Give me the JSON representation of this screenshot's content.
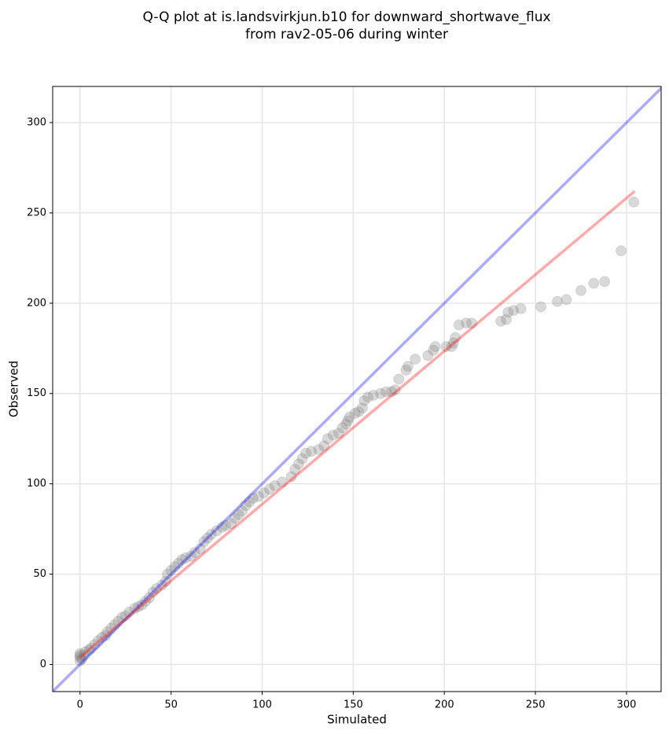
{
  "chart_data": {
    "type": "scatter",
    "title": [
      "Q-Q plot at is.landsvirkjun.b10 for downward_shortwave_flux",
      "from rav2-05-06 during winter"
    ],
    "xlabel": "Simulated",
    "ylabel": "Observed",
    "xlim": [
      -15,
      319
    ],
    "ylim": [
      -15,
      320
    ],
    "xticks": [
      0,
      50,
      100,
      150,
      200,
      250,
      300
    ],
    "yticks": [
      0,
      50,
      100,
      150,
      200,
      250,
      300
    ],
    "grid": true,
    "color": "#808080",
    "x": [
      0,
      0,
      0,
      0,
      1,
      2,
      3,
      5,
      6,
      8,
      10,
      12,
      14,
      15,
      17,
      19,
      21,
      23,
      25,
      27,
      30,
      32,
      34,
      36,
      38,
      40,
      42,
      45,
      47,
      48,
      50,
      52,
      54,
      56,
      58,
      61,
      63,
      66,
      68,
      70,
      72,
      75,
      78,
      80,
      83,
      85,
      87,
      89,
      91,
      93,
      95,
      98,
      101,
      104,
      107,
      111,
      116,
      118,
      120,
      122,
      124,
      127,
      131,
      134,
      136,
      139,
      142,
      144,
      146,
      147,
      148,
      151,
      153,
      155,
      156,
      158,
      161,
      165,
      168,
      171,
      173,
      175,
      179,
      180,
      184,
      191,
      194,
      195,
      201,
      204,
      205,
      206,
      208,
      212,
      215,
      231,
      234,
      235,
      238,
      242,
      253,
      262,
      267,
      275,
      282,
      288,
      297,
      304
    ],
    "values": [
      2,
      4,
      5,
      6,
      3,
      5,
      7,
      8,
      9,
      11,
      13,
      15,
      16,
      18,
      20,
      22,
      24,
      26,
      27,
      29,
      31,
      32,
      33,
      35,
      37,
      40,
      42,
      44,
      46,
      50,
      52,
      54,
      56,
      58,
      59,
      60,
      62,
      64,
      68,
      70,
      72,
      74,
      76,
      77,
      78,
      81,
      83,
      85,
      88,
      90,
      92,
      93,
      95,
      97,
      99,
      101,
      104,
      108,
      111,
      114,
      117,
      118,
      119,
      121,
      125,
      127,
      128,
      131,
      133,
      135,
      137,
      139,
      140,
      142,
      146,
      148,
      149,
      150,
      151,
      151,
      152,
      158,
      163,
      165,
      169,
      171,
      174,
      176,
      176,
      176,
      178,
      181,
      188,
      189,
      189,
      190,
      191,
      195,
      196,
      197,
      198,
      201,
      202,
      207,
      211,
      212,
      229,
      256
    ],
    "lines": [
      {
        "color": "#0000ff",
        "x": [
          -15,
          319
        ],
        "values": [
          -15,
          319
        ]
      },
      {
        "color": "#ff0000",
        "x": [
          0,
          304.5
        ],
        "values": [
          4,
          262
        ]
      }
    ]
  }
}
